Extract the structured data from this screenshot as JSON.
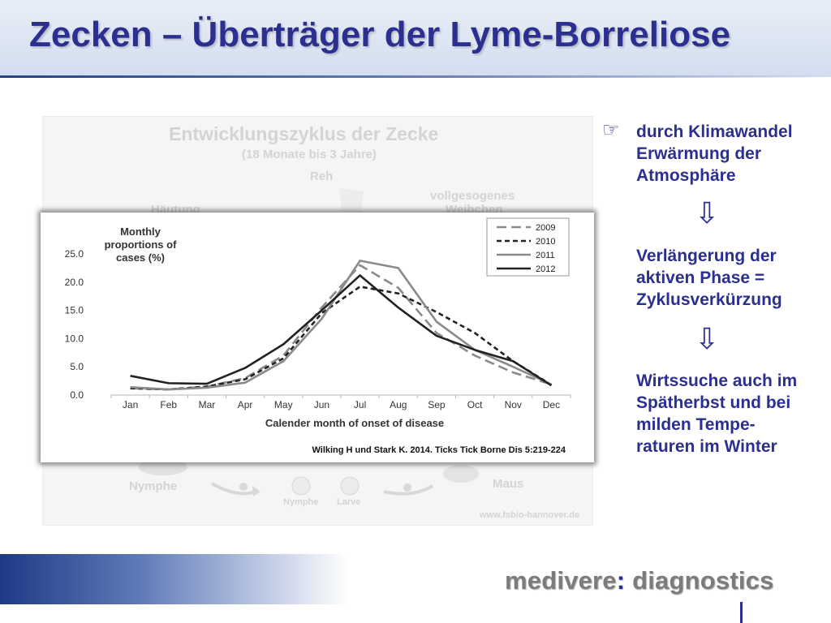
{
  "slide": {
    "title": "Zecken – Überträger der Lyme-Borreliose",
    "colors": {
      "title": "#2b2f8f",
      "accent": "#1e3a86"
    }
  },
  "background_image": {
    "title": "Entwicklungszyklus der Zecke",
    "subtitle": "(18 Monate bis 3 Jahre)",
    "labels": {
      "reh": "Reh",
      "vollgesogenes": "vollgesogenes",
      "weibchen": "Weibchen",
      "haeutung": "Häutung",
      "nymphe_left": "Nymphe",
      "nymphe_small": "Nymphe",
      "larve": "Larve",
      "maus": "Maus"
    },
    "source_url": "www.fsbio-hannover.de"
  },
  "chart_data": {
    "type": "line",
    "title": "Monthly proportions of cases (%)",
    "title_lines": [
      "Monthly",
      "proportions of",
      "cases (%)"
    ],
    "xlabel": "Calender month of onset of disease",
    "ylabel": "",
    "categories": [
      "Jan",
      "Feb",
      "Mar",
      "Apr",
      "May",
      "Jun",
      "Jul",
      "Aug",
      "Sep",
      "Oct",
      "Nov",
      "Dec"
    ],
    "ylim": [
      0,
      25
    ],
    "yticks": [
      "0.0",
      "5.0",
      "10.0",
      "15.0",
      "20.0",
      "25.0"
    ],
    "legend_position": "top-right",
    "grid": false,
    "series": [
      {
        "name": "2009",
        "style": "long-dash",
        "color": "#8a8a8a",
        "values": [
          1.2,
          1.0,
          1.5,
          3.0,
          7.0,
          15.5,
          23.0,
          19.0,
          11.0,
          7.0,
          4.0,
          1.9
        ]
      },
      {
        "name": "2010",
        "style": "short-dash",
        "color": "#222222",
        "values": [
          1.2,
          1.0,
          1.5,
          2.8,
          6.5,
          14.5,
          19.2,
          18.0,
          14.7,
          11.0,
          6.0,
          1.8
        ]
      },
      {
        "name": "2011",
        "style": "solid",
        "color": "#8a8a8a",
        "values": [
          1.4,
          1.0,
          1.3,
          2.2,
          6.0,
          13.5,
          23.8,
          22.5,
          13.0,
          8.0,
          5.0,
          1.9
        ]
      },
      {
        "name": "2012",
        "style": "solid",
        "color": "#222222",
        "values": [
          3.4,
          2.1,
          2.0,
          4.8,
          9.0,
          15.0,
          21.2,
          15.5,
          10.5,
          8.0,
          6.0,
          1.7
        ]
      }
    ],
    "source_note": "Wilking H und Stark K. 2014. Ticks Tick Borne Dis 5:219-224"
  },
  "right_column": {
    "bullet_icon": "pointing-hand-icon",
    "arrow_icon": "down-arrow-icon",
    "block1": "durch Klimawandel Erwärmung der Atmosphäre",
    "block2": "Verlängerung der aktiven Phase = Zyklusverkürzung",
    "block3": "Wirtssuche auch im Spätherbst und bei milden Tempe-raturen im Winter"
  },
  "footer": {
    "brand_left": "medivere",
    "brand_colon": ":",
    "brand_right": " diagnostics"
  }
}
